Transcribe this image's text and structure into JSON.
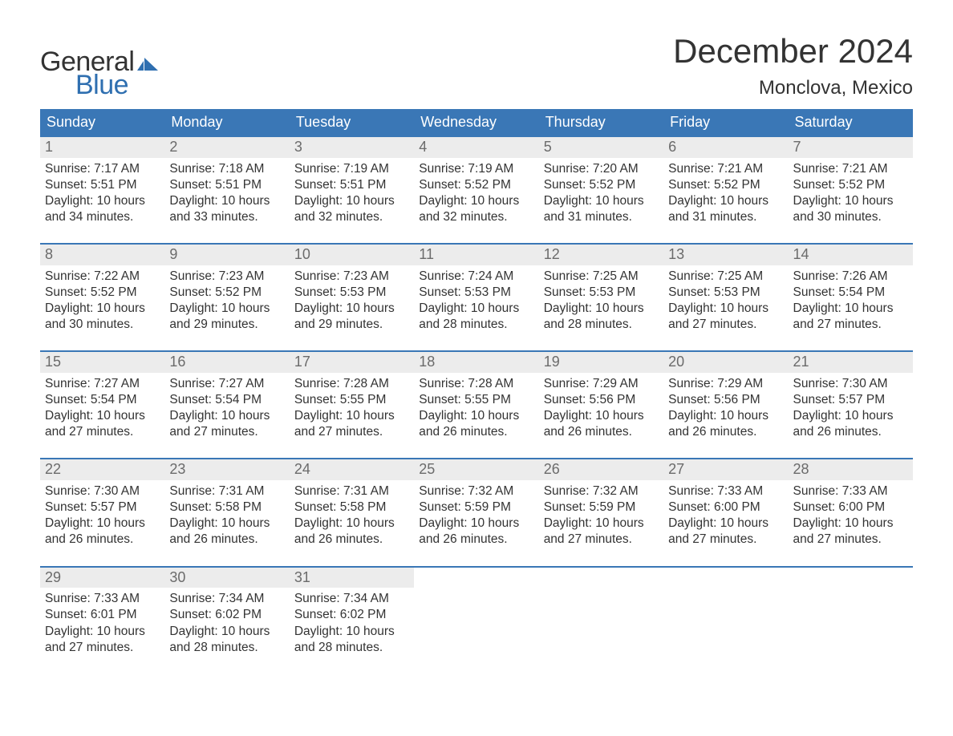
{
  "colors": {
    "header_bg": "#3a77b6",
    "header_text": "#ffffff",
    "daynum_bg": "#ececec",
    "daynum_text": "#6b6b6b",
    "body_text": "#333333",
    "week_border": "#3a77b6",
    "logo_blue": "#2f6fb0",
    "page_bg": "#ffffff"
  },
  "typography": {
    "month_title_fontsize": 42,
    "location_fontsize": 24,
    "weekday_fontsize": 18,
    "daynum_fontsize": 18,
    "body_fontsize": 15.5,
    "logo_fontsize": 34,
    "font_family": "Arial"
  },
  "logo": {
    "line1": "General",
    "line2": "Blue",
    "icon_name": "flag-icon",
    "icon_color": "#2f6fb0"
  },
  "title": "December 2024",
  "location": "Monclova, Mexico",
  "weekdays": [
    "Sunday",
    "Monday",
    "Tuesday",
    "Wednesday",
    "Thursday",
    "Friday",
    "Saturday"
  ],
  "label_sunrise": "Sunrise:",
  "label_sunset": "Sunset:",
  "label_daylight": "Daylight:",
  "weeks": [
    [
      {
        "day": "1",
        "sunrise": "7:17 AM",
        "sunset": "5:51 PM",
        "daylight_l1": "10 hours",
        "daylight_l2": "and 34 minutes."
      },
      {
        "day": "2",
        "sunrise": "7:18 AM",
        "sunset": "5:51 PM",
        "daylight_l1": "10 hours",
        "daylight_l2": "and 33 minutes."
      },
      {
        "day": "3",
        "sunrise": "7:19 AM",
        "sunset": "5:51 PM",
        "daylight_l1": "10 hours",
        "daylight_l2": "and 32 minutes."
      },
      {
        "day": "4",
        "sunrise": "7:19 AM",
        "sunset": "5:52 PM",
        "daylight_l1": "10 hours",
        "daylight_l2": "and 32 minutes."
      },
      {
        "day": "5",
        "sunrise": "7:20 AM",
        "sunset": "5:52 PM",
        "daylight_l1": "10 hours",
        "daylight_l2": "and 31 minutes."
      },
      {
        "day": "6",
        "sunrise": "7:21 AM",
        "sunset": "5:52 PM",
        "daylight_l1": "10 hours",
        "daylight_l2": "and 31 minutes."
      },
      {
        "day": "7",
        "sunrise": "7:21 AM",
        "sunset": "5:52 PM",
        "daylight_l1": "10 hours",
        "daylight_l2": "and 30 minutes."
      }
    ],
    [
      {
        "day": "8",
        "sunrise": "7:22 AM",
        "sunset": "5:52 PM",
        "daylight_l1": "10 hours",
        "daylight_l2": "and 30 minutes."
      },
      {
        "day": "9",
        "sunrise": "7:23 AM",
        "sunset": "5:52 PM",
        "daylight_l1": "10 hours",
        "daylight_l2": "and 29 minutes."
      },
      {
        "day": "10",
        "sunrise": "7:23 AM",
        "sunset": "5:53 PM",
        "daylight_l1": "10 hours",
        "daylight_l2": "and 29 minutes."
      },
      {
        "day": "11",
        "sunrise": "7:24 AM",
        "sunset": "5:53 PM",
        "daylight_l1": "10 hours",
        "daylight_l2": "and 28 minutes."
      },
      {
        "day": "12",
        "sunrise": "7:25 AM",
        "sunset": "5:53 PM",
        "daylight_l1": "10 hours",
        "daylight_l2": "and 28 minutes."
      },
      {
        "day": "13",
        "sunrise": "7:25 AM",
        "sunset": "5:53 PM",
        "daylight_l1": "10 hours",
        "daylight_l2": "and 27 minutes."
      },
      {
        "day": "14",
        "sunrise": "7:26 AM",
        "sunset": "5:54 PM",
        "daylight_l1": "10 hours",
        "daylight_l2": "and 27 minutes."
      }
    ],
    [
      {
        "day": "15",
        "sunrise": "7:27 AM",
        "sunset": "5:54 PM",
        "daylight_l1": "10 hours",
        "daylight_l2": "and 27 minutes."
      },
      {
        "day": "16",
        "sunrise": "7:27 AM",
        "sunset": "5:54 PM",
        "daylight_l1": "10 hours",
        "daylight_l2": "and 27 minutes."
      },
      {
        "day": "17",
        "sunrise": "7:28 AM",
        "sunset": "5:55 PM",
        "daylight_l1": "10 hours",
        "daylight_l2": "and 27 minutes."
      },
      {
        "day": "18",
        "sunrise": "7:28 AM",
        "sunset": "5:55 PM",
        "daylight_l1": "10 hours",
        "daylight_l2": "and 26 minutes."
      },
      {
        "day": "19",
        "sunrise": "7:29 AM",
        "sunset": "5:56 PM",
        "daylight_l1": "10 hours",
        "daylight_l2": "and 26 minutes."
      },
      {
        "day": "20",
        "sunrise": "7:29 AM",
        "sunset": "5:56 PM",
        "daylight_l1": "10 hours",
        "daylight_l2": "and 26 minutes."
      },
      {
        "day": "21",
        "sunrise": "7:30 AM",
        "sunset": "5:57 PM",
        "daylight_l1": "10 hours",
        "daylight_l2": "and 26 minutes."
      }
    ],
    [
      {
        "day": "22",
        "sunrise": "7:30 AM",
        "sunset": "5:57 PM",
        "daylight_l1": "10 hours",
        "daylight_l2": "and 26 minutes."
      },
      {
        "day": "23",
        "sunrise": "7:31 AM",
        "sunset": "5:58 PM",
        "daylight_l1": "10 hours",
        "daylight_l2": "and 26 minutes."
      },
      {
        "day": "24",
        "sunrise": "7:31 AM",
        "sunset": "5:58 PM",
        "daylight_l1": "10 hours",
        "daylight_l2": "and 26 minutes."
      },
      {
        "day": "25",
        "sunrise": "7:32 AM",
        "sunset": "5:59 PM",
        "daylight_l1": "10 hours",
        "daylight_l2": "and 26 minutes."
      },
      {
        "day": "26",
        "sunrise": "7:32 AM",
        "sunset": "5:59 PM",
        "daylight_l1": "10 hours",
        "daylight_l2": "and 27 minutes."
      },
      {
        "day": "27",
        "sunrise": "7:33 AM",
        "sunset": "6:00 PM",
        "daylight_l1": "10 hours",
        "daylight_l2": "and 27 minutes."
      },
      {
        "day": "28",
        "sunrise": "7:33 AM",
        "sunset": "6:00 PM",
        "daylight_l1": "10 hours",
        "daylight_l2": "and 27 minutes."
      }
    ],
    [
      {
        "day": "29",
        "sunrise": "7:33 AM",
        "sunset": "6:01 PM",
        "daylight_l1": "10 hours",
        "daylight_l2": "and 27 minutes."
      },
      {
        "day": "30",
        "sunrise": "7:34 AM",
        "sunset": "6:02 PM",
        "daylight_l1": "10 hours",
        "daylight_l2": "and 28 minutes."
      },
      {
        "day": "31",
        "sunrise": "7:34 AM",
        "sunset": "6:02 PM",
        "daylight_l1": "10 hours",
        "daylight_l2": "and 28 minutes."
      },
      {
        "empty": true
      },
      {
        "empty": true
      },
      {
        "empty": true
      },
      {
        "empty": true
      }
    ]
  ]
}
